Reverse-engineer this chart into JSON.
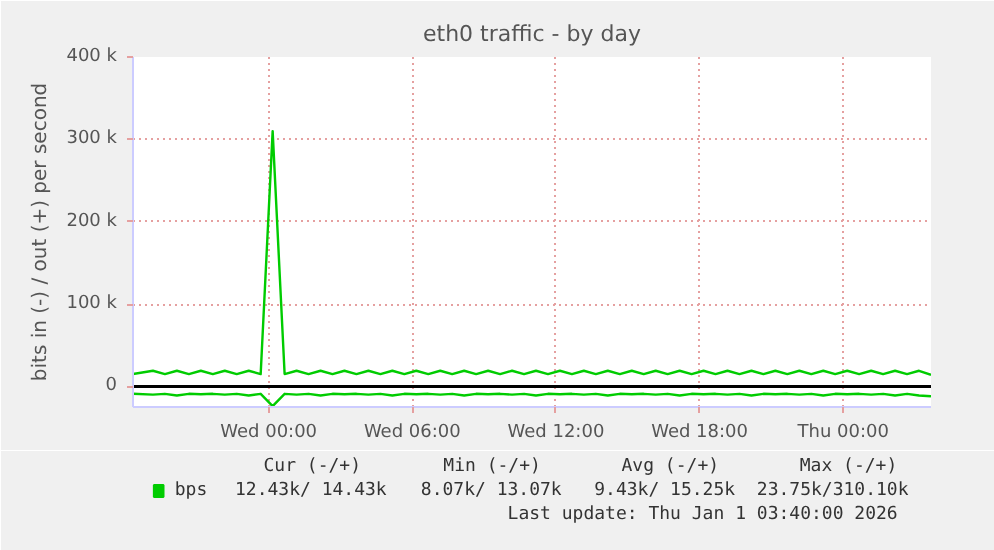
{
  "chart_data": {
    "type": "line",
    "title": "eth0 traffic - by day",
    "ylabel": "bits in (-) / out (+) per second",
    "x": [
      "2025-12-30T18:20",
      "2025-12-30T19:10",
      "2025-12-30T19:40",
      "2025-12-30T20:10",
      "2025-12-30T20:40",
      "2025-12-30T21:10",
      "2025-12-30T21:40",
      "2025-12-30T22:10",
      "2025-12-30T22:40",
      "2025-12-30T23:10",
      "2025-12-30T23:40",
      "2025-12-31T00:10",
      "2025-12-31T00:40",
      "2025-12-31T01:10",
      "2025-12-31T01:40",
      "2025-12-31T02:10",
      "2025-12-31T02:40",
      "2025-12-31T03:10",
      "2025-12-31T03:40",
      "2025-12-31T04:10",
      "2025-12-31T04:40",
      "2025-12-31T05:10",
      "2025-12-31T05:40",
      "2025-12-31T06:10",
      "2025-12-31T06:40",
      "2025-12-31T07:10",
      "2025-12-31T07:40",
      "2025-12-31T08:10",
      "2025-12-31T08:40",
      "2025-12-31T09:10",
      "2025-12-31T09:40",
      "2025-12-31T10:10",
      "2025-12-31T10:40",
      "2025-12-31T11:10",
      "2025-12-31T11:40",
      "2025-12-31T12:10",
      "2025-12-31T12:40",
      "2025-12-31T13:10",
      "2025-12-31T13:40",
      "2025-12-31T14:10",
      "2025-12-31T14:40",
      "2025-12-31T15:10",
      "2025-12-31T15:40",
      "2025-12-31T16:10",
      "2025-12-31T16:40",
      "2025-12-31T17:10",
      "2025-12-31T17:40",
      "2025-12-31T18:10",
      "2025-12-31T18:40",
      "2025-12-31T19:10",
      "2025-12-31T19:40",
      "2025-12-31T20:10",
      "2025-12-31T20:40",
      "2025-12-31T21:10",
      "2025-12-31T21:40",
      "2025-12-31T22:10",
      "2025-12-31T22:40",
      "2025-12-31T23:10",
      "2025-12-31T23:40",
      "2026-01-01T00:10",
      "2026-01-01T00:40",
      "2026-01-01T01:10",
      "2026-01-01T01:40",
      "2026-01-01T02:10",
      "2026-01-01T02:40",
      "2026-01-01T03:10",
      "2026-01-01T03:40"
    ],
    "series": [
      {
        "name": "bps",
        "color": "#00cc00",
        "values": [
          15000,
          19000,
          15000,
          19000,
          15000,
          19000,
          15000,
          19000,
          15000,
          19000,
          15000,
          310000,
          15000,
          19000,
          15000,
          19000,
          15000,
          19000,
          15000,
          19000,
          15000,
          19000,
          15000,
          19000,
          15000,
          19000,
          15000,
          19000,
          15000,
          19000,
          15000,
          19000,
          15000,
          19000,
          15000,
          19000,
          15000,
          19000,
          15000,
          19000,
          15000,
          19000,
          15000,
          19000,
          15000,
          19000,
          15000,
          19000,
          15000,
          19000,
          15000,
          19000,
          15000,
          19000,
          15000,
          19000,
          15000,
          19000,
          15000,
          19000,
          15000,
          19000,
          15000,
          19000,
          15000,
          19000,
          14000
        ]
      },
      {
        "color": "#00cc00",
        "values": [
          -9000,
          -10000,
          -9000,
          -11000,
          -9000,
          -9500,
          -9000,
          -10000,
          -9000,
          -11000,
          -9000,
          -24000,
          -9000,
          -10000,
          -9000,
          -11000,
          -9000,
          -9500,
          -9000,
          -10000,
          -9000,
          -11000,
          -9000,
          -9500,
          -9000,
          -10000,
          -9000,
          -11000,
          -9000,
          -9500,
          -9000,
          -10000,
          -9000,
          -11000,
          -9000,
          -9500,
          -9000,
          -10000,
          -9000,
          -11000,
          -9000,
          -9500,
          -9000,
          -10000,
          -9000,
          -11000,
          -9000,
          -9500,
          -9000,
          -10000,
          -9000,
          -11000,
          -9000,
          -9500,
          -9000,
          -10000,
          -9000,
          -11000,
          -9000,
          -9500,
          -9000,
          -10000,
          -9000,
          -11000,
          -9000,
          -11000,
          -12000
        ]
      }
    ],
    "xlim": [
      "2025-12-30T18:20",
      "2026-01-01T03:40"
    ],
    "ylim": [
      -25000,
      400000
    ],
    "xticks": [
      {
        "value": "2025-12-31T00:00",
        "label": "Wed 00:00"
      },
      {
        "value": "2025-12-31T06:00",
        "label": "Wed 06:00"
      },
      {
        "value": "2025-12-31T12:00",
        "label": "Wed 12:00"
      },
      {
        "value": "2025-12-31T18:00",
        "label": "Wed 18:00"
      },
      {
        "value": "2026-01-01T00:00",
        "label": "Thu 00:00"
      }
    ],
    "yticks": [
      {
        "value": 0,
        "label": "0"
      },
      {
        "value": 100000,
        "label": "100 k"
      },
      {
        "value": 200000,
        "label": "200 k"
      },
      {
        "value": 300000,
        "label": "300 k"
      },
      {
        "value": 400000,
        "label": "400 k"
      }
    ],
    "ref_lines": [
      {
        "axis": "y",
        "value": 0,
        "color": "#000000"
      }
    ],
    "grid": true,
    "legend": "bottom left",
    "marker": "none",
    "line_style": "solid",
    "annotations": [
      "Cur (-/+)",
      "Min (-/+)",
      "Avg (-/+)",
      "Max (-/+)",
      "12.43k/ 14.43k",
      "8.07k/ 13.07k",
      "9.43k/ 15.25k",
      "23.75k/310.10k",
      "Last update: Thu Jan  1 03:40:00 2026"
    ]
  }
}
